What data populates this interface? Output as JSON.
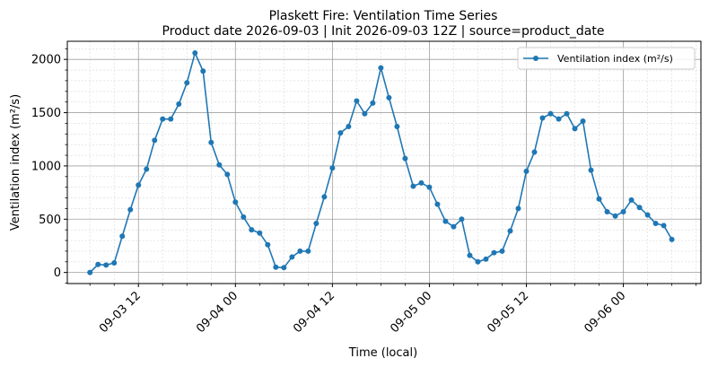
{
  "chart_data": {
    "type": "line",
    "title_line1": "Plaskett Fire: Ventilation Time Series",
    "title_line2": "Product date 2026-09-03 | Init 2026-09-03 12Z | source=product_date",
    "xlabel": "Time (local)",
    "ylabel": "Ventilation index (m²/s)",
    "x_ticks": [
      {
        "label": "09-03 12",
        "t": 12
      },
      {
        "label": "09-04 00",
        "t": 24
      },
      {
        "label": "09-04 12",
        "t": 36
      },
      {
        "label": "09-05 00",
        "t": 48
      },
      {
        "label": "09-05 12",
        "t": 60
      },
      {
        "label": "09-06 00",
        "t": 72
      }
    ],
    "y_ticks": [
      0,
      500,
      1000,
      1500,
      2000
    ],
    "xlim": [
      3.2,
      81.6
    ],
    "ylim": [
      -104,
      2170
    ],
    "grid": "major and minor",
    "legend_position": "top-right",
    "color": "#1f77b4",
    "series": [
      {
        "name": "Ventilation index (m²/s)",
        "x_start_hour": 6,
        "x_step_hours": 1,
        "values": [
          0,
          75,
          70,
          90,
          340,
          590,
          820,
          970,
          1240,
          1440,
          1440,
          1580,
          1780,
          2060,
          1890,
          1220,
          1010,
          920,
          660,
          520,
          400,
          370,
          260,
          50,
          45,
          145,
          200,
          200,
          460,
          710,
          980,
          1310,
          1370,
          1610,
          1490,
          1590,
          1920,
          1640,
          1370,
          1070,
          810,
          840,
          800,
          640,
          480,
          430,
          500,
          160,
          100,
          125,
          185,
          200,
          390,
          600,
          950,
          1130,
          1450,
          1490,
          1440,
          1490,
          1350,
          1420,
          960,
          690,
          570,
          530,
          570,
          680,
          610,
          540,
          460,
          440,
          310
        ]
      }
    ]
  }
}
